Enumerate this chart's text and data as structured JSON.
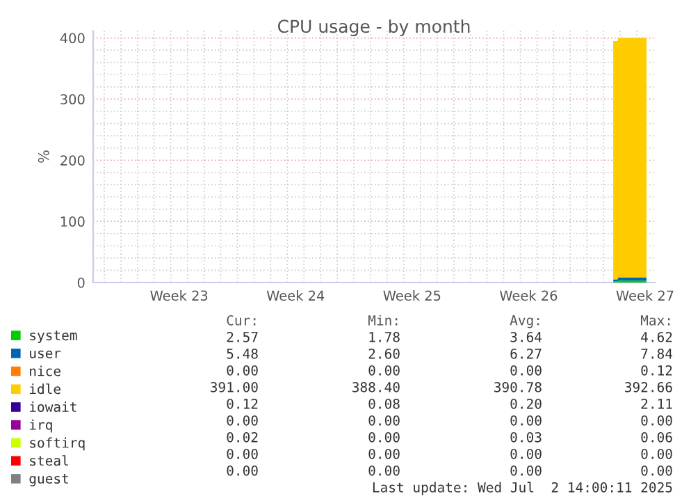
{
  "chart_data": {
    "type": "area",
    "stacked": true,
    "title": "CPU usage - by month",
    "ylabel": "%",
    "xlim": [
      "2025-05-31T08:00",
      "2025-07-04T02:00"
    ],
    "xticks": [
      {
        "value": "2025-06-01",
        "label": null
      },
      {
        "value": "2025-06-02",
        "label": null
      },
      {
        "value": "2025-06-03",
        "label": null
      },
      {
        "value": "2025-06-04",
        "label": null
      },
      {
        "value": "2025-06-05",
        "label": null
      },
      {
        "value": "2025-06-05T12:00",
        "label": "Week 23"
      },
      {
        "value": "2025-06-06",
        "label": null
      },
      {
        "value": "2025-06-07",
        "label": null
      },
      {
        "value": "2025-06-08",
        "label": null
      },
      {
        "value": "2025-06-09",
        "label": null
      },
      {
        "value": "2025-06-10",
        "label": null
      },
      {
        "value": "2025-06-11",
        "label": null
      },
      {
        "value": "2025-06-12",
        "label": null
      },
      {
        "value": "2025-06-12T12:00",
        "label": "Week 24"
      },
      {
        "value": "2025-06-13",
        "label": null
      },
      {
        "value": "2025-06-14",
        "label": null
      },
      {
        "value": "2025-06-15",
        "label": null
      },
      {
        "value": "2025-06-16",
        "label": null
      },
      {
        "value": "2025-06-17",
        "label": null
      },
      {
        "value": "2025-06-18",
        "label": null
      },
      {
        "value": "2025-06-19",
        "label": null
      },
      {
        "value": "2025-06-19T12:00",
        "label": "Week 25"
      },
      {
        "value": "2025-06-20",
        "label": null
      },
      {
        "value": "2025-06-21",
        "label": null
      },
      {
        "value": "2025-06-22",
        "label": null
      },
      {
        "value": "2025-06-23",
        "label": null
      },
      {
        "value": "2025-06-24",
        "label": null
      },
      {
        "value": "2025-06-25",
        "label": null
      },
      {
        "value": "2025-06-26",
        "label": null
      },
      {
        "value": "2025-06-26T12:00",
        "label": "Week 26"
      },
      {
        "value": "2025-06-27",
        "label": null
      },
      {
        "value": "2025-06-28",
        "label": null
      },
      {
        "value": "2025-06-29",
        "label": null
      },
      {
        "value": "2025-06-30",
        "label": null
      },
      {
        "value": "2025-07-01",
        "label": null
      },
      {
        "value": "2025-07-02",
        "label": null
      },
      {
        "value": "2025-07-03",
        "label": null
      },
      {
        "value": "2025-07-03T12:00",
        "label": "Week 27"
      }
    ],
    "ylim": [
      0,
      412
    ],
    "yticks": [
      0,
      {
        "value": 20,
        "label": null
      },
      {
        "value": 40,
        "label": null
      },
      {
        "value": 60,
        "label": null
      },
      {
        "value": 80,
        "label": null
      },
      100,
      {
        "value": 120,
        "label": null
      },
      {
        "value": 140,
        "label": null
      },
      {
        "value": 160,
        "label": null
      },
      {
        "value": 180,
        "label": null
      },
      200,
      {
        "value": 220,
        "label": null
      },
      {
        "value": 240,
        "label": null
      },
      {
        "value": 260,
        "label": null
      },
      {
        "value": 280,
        "label": null
      },
      300,
      {
        "value": 320,
        "label": null
      },
      {
        "value": 340,
        "label": null
      },
      {
        "value": 360,
        "label": null
      },
      {
        "value": 380,
        "label": null
      },
      400
    ],
    "grid": true,
    "legend": "bottom",
    "x": [
      "2025-07-01T14:00",
      "2025-07-01T20:00",
      "2025-07-01T21:00",
      "2025-07-03T14:00"
    ],
    "series": [
      {
        "name": "system",
        "color": "#00cc00",
        "values": [
          2,
          2,
          3,
          3
        ]
      },
      {
        "name": "user",
        "color": "#0066b3",
        "values": [
          3,
          3,
          5,
          5
        ]
      },
      {
        "name": "nice",
        "color": "#ff8000",
        "values": [
          null,
          null,
          null,
          null
        ]
      },
      {
        "name": "idle",
        "color": "#ffcc00",
        "values": [
          390,
          390,
          392,
          392
        ]
      },
      {
        "name": "iowait",
        "color": "#330099",
        "values": [
          null,
          null,
          null,
          null
        ]
      },
      {
        "name": "irq",
        "color": "#990099",
        "values": [
          null,
          null,
          null,
          null
        ]
      },
      {
        "name": "softirq",
        "color": "#ccff00",
        "values": [
          null,
          null,
          null,
          null
        ]
      },
      {
        "name": "steal",
        "color": "#ff0000",
        "values": [
          null,
          null,
          null,
          null
        ]
      },
      {
        "name": "guest",
        "color": "#808080",
        "values": [
          null,
          null,
          null,
          null
        ]
      }
    ],
    "annotations": [
      "Cur:",
      "Min:",
      "Avg:",
      "Max:",
      "2.57",
      "1.78",
      "3.64",
      "4.62",
      "5.48",
      "2.60",
      "6.27",
      "7.84",
      "0.00",
      "0.00",
      "0.00",
      "0.12",
      "391.00",
      "388.40",
      "390.78",
      "392.66",
      "0.12",
      "0.08",
      "0.20",
      "2.11",
      "0.00",
      "0.00",
      "0.00",
      "0.00",
      "0.02",
      "0.00",
      "0.03",
      "0.06",
      "0.00",
      "0.00",
      "0.00",
      "0.00",
      "0.00",
      "0.00",
      "0.00",
      "0.00",
      "Last update: Wed Jul  2 14:00:11 2025"
    ]
  }
}
